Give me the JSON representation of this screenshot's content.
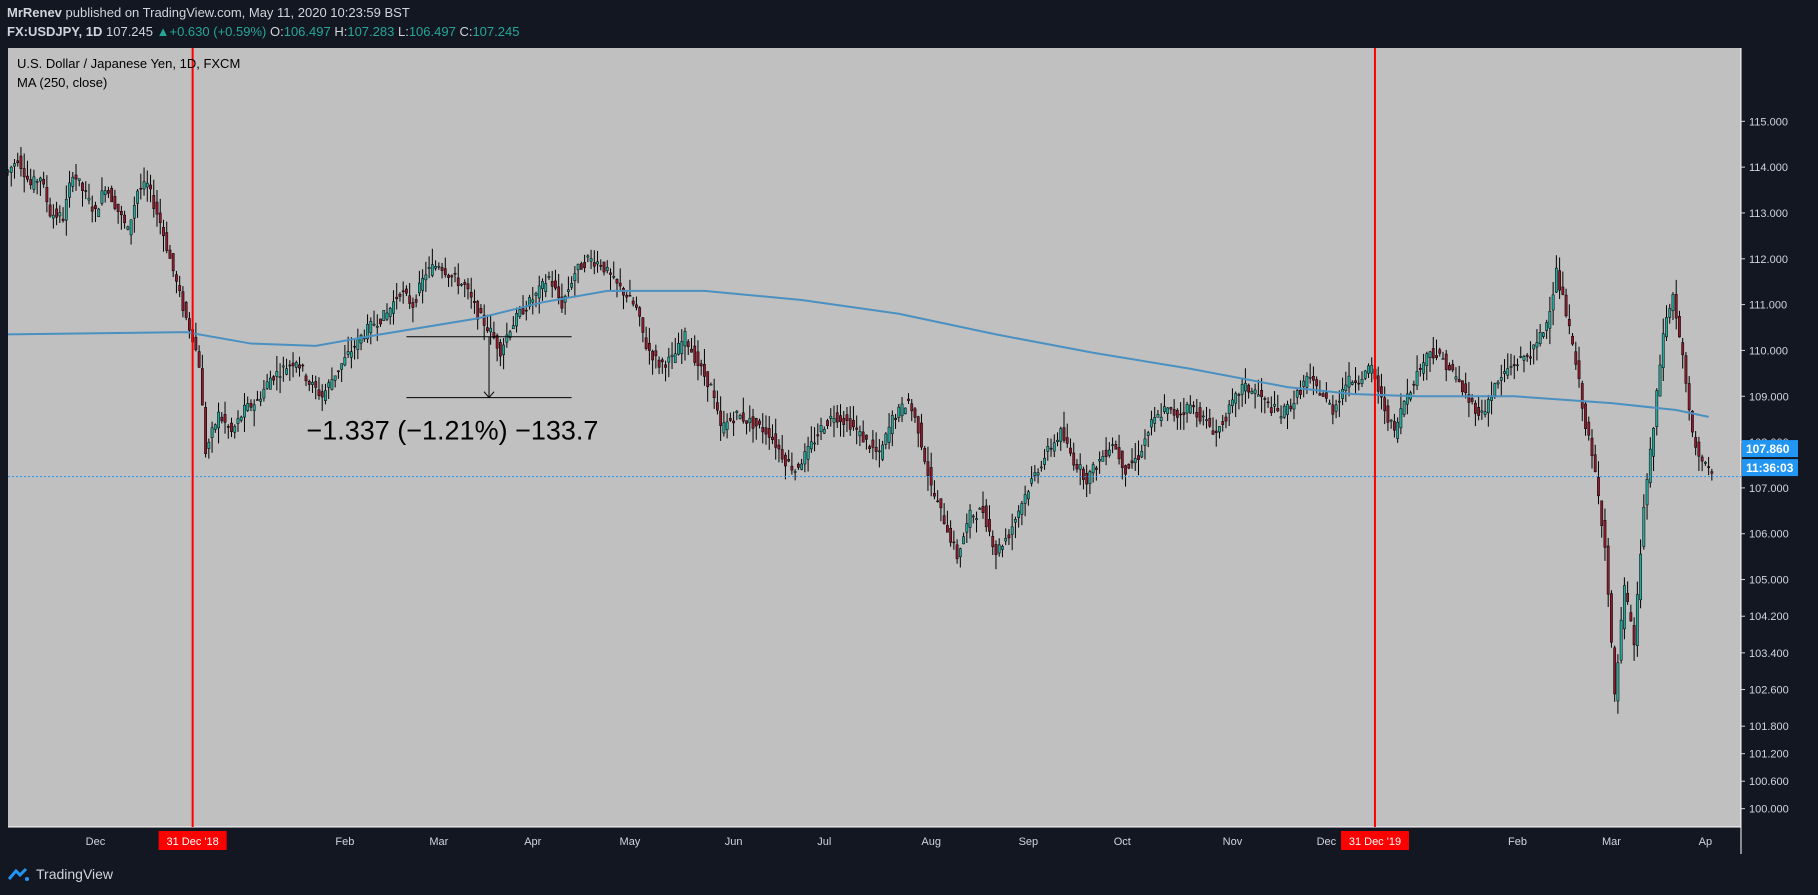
{
  "header": {
    "author": "MrRenev",
    "published": "published on TradingView.com, May 11, 2020 10:23:59 BST",
    "symbol": "FX:USDJPY, 1D",
    "last": "107.245",
    "change": "+0.630 (+0.59%)",
    "open_label": "O:",
    "open": "106.497",
    "high_label": "H:",
    "high": "107.283",
    "low_label": "L:",
    "low": "106.497",
    "close_label": "C:",
    "close": "107.245"
  },
  "legend": {
    "title": "U.S. Dollar / Japanese Yen, 1D, FXCM",
    "ma": "MA (250, close)"
  },
  "footer": {
    "brand": "TradingView"
  },
  "colors": {
    "background": "#131722",
    "plot": "#c0c0c0",
    "up": "#26a69a",
    "down": "#8b1a2b",
    "ma": "#4a90c0",
    "marker": "#ff0000",
    "accent": "#2196f3"
  },
  "chart_data": {
    "type": "candlestick",
    "title": "U.S. Dollar / Japanese Yen, 1D, FXCM",
    "y_ticks": [
      115.0,
      114.0,
      113.0,
      112.0,
      111.0,
      110.0,
      109.0,
      108.0,
      107.0,
      106.0,
      105.0,
      104.2,
      103.4,
      102.6,
      101.8,
      101.2,
      100.6,
      100.0
    ],
    "y_tick_labels": [
      "115.000",
      "114.000",
      "113.000",
      "112.000",
      "111.000",
      "110.000",
      "109.000",
      "108.000",
      "107.000",
      "106.000",
      "105.000",
      "104.200",
      "103.400",
      "102.600",
      "101.800",
      "101.200",
      "100.600",
      "100.000"
    ],
    "x_labels": [
      "Dec",
      "Feb",
      "Mar",
      "Apr",
      "May",
      "Jun",
      "Jul",
      "Aug",
      "Sep",
      "Oct",
      "Nov",
      "Dec",
      "Feb",
      "Mar",
      "Ap"
    ],
    "x_label_days": [
      12,
      89,
      118,
      147,
      177,
      209,
      237,
      270,
      300,
      329,
      363,
      392,
      451,
      480,
      509
    ],
    "ylim": [
      99.6,
      116.6
    ],
    "xlim": [
      -15,
      520
    ],
    "markers": [
      {
        "label": "31 Dec '18",
        "day": 42
      },
      {
        "label": "31 Dec '19",
        "day": 407
      }
    ],
    "ma_label": "MA (250, close)",
    "ma_path": [
      [
        -15,
        110.35
      ],
      [
        40,
        110.4
      ],
      [
        60,
        110.15
      ],
      [
        80,
        110.1
      ],
      [
        100,
        110.35
      ],
      [
        130,
        110.7
      ],
      [
        150,
        111.05
      ],
      [
        170,
        111.3
      ],
      [
        200,
        111.3
      ],
      [
        230,
        111.1
      ],
      [
        260,
        110.8
      ],
      [
        290,
        110.35
      ],
      [
        320,
        109.95
      ],
      [
        350,
        109.6
      ],
      [
        380,
        109.2
      ],
      [
        400,
        109.05
      ],
      [
        420,
        109.0
      ],
      [
        450,
        109.0
      ],
      [
        480,
        108.85
      ],
      [
        500,
        108.7
      ],
      [
        510,
        108.55
      ]
    ],
    "price_path": [
      [
        -15,
        113.9
      ],
      [
        -12,
        114.2
      ],
      [
        -8,
        113.6
      ],
      [
        -5,
        113.8
      ],
      [
        -2,
        113.0
      ],
      [
        2,
        112.9
      ],
      [
        5,
        113.9
      ],
      [
        8,
        113.5
      ],
      [
        12,
        113.0
      ],
      [
        15,
        113.6
      ],
      [
        18,
        113.2
      ],
      [
        22,
        112.6
      ],
      [
        25,
        113.5
      ],
      [
        28,
        113.6
      ],
      [
        32,
        112.8
      ],
      [
        35,
        112.0
      ],
      [
        38,
        111.2
      ],
      [
        40,
        110.7
      ],
      [
        42,
        110.3
      ],
      [
        44,
        109.7
      ],
      [
        46,
        107.8
      ],
      [
        50,
        108.6
      ],
      [
        54,
        108.2
      ],
      [
        58,
        108.7
      ],
      [
        62,
        108.9
      ],
      [
        66,
        109.4
      ],
      [
        70,
        109.6
      ],
      [
        74,
        109.8
      ],
      [
        78,
        109.3
      ],
      [
        82,
        109.0
      ],
      [
        86,
        109.5
      ],
      [
        90,
        109.9
      ],
      [
        94,
        110.3
      ],
      [
        98,
        110.6
      ],
      [
        102,
        110.8
      ],
      [
        106,
        111.3
      ],
      [
        110,
        111.0
      ],
      [
        114,
        111.7
      ],
      [
        118,
        111.9
      ],
      [
        122,
        111.6
      ],
      [
        126,
        111.4
      ],
      [
        130,
        110.8
      ],
      [
        134,
        110.4
      ],
      [
        137,
        110.0
      ],
      [
        140,
        110.5
      ],
      [
        144,
        110.9
      ],
      [
        148,
        111.2
      ],
      [
        152,
        111.6
      ],
      [
        156,
        111.0
      ],
      [
        160,
        111.7
      ],
      [
        164,
        112.0
      ],
      [
        168,
        111.9
      ],
      [
        172,
        111.5
      ],
      [
        176,
        111.2
      ],
      [
        179,
        110.9
      ],
      [
        182,
        110.1
      ],
      [
        186,
        109.7
      ],
      [
        190,
        109.8
      ],
      [
        194,
        110.3
      ],
      [
        198,
        109.7
      ],
      [
        202,
        109.2
      ],
      [
        205,
        108.3
      ],
      [
        210,
        108.6
      ],
      [
        215,
        108.4
      ],
      [
        220,
        108.2
      ],
      [
        225,
        107.6
      ],
      [
        228,
        107.4
      ],
      [
        232,
        107.8
      ],
      [
        236,
        108.3
      ],
      [
        240,
        108.6
      ],
      [
        245,
        108.4
      ],
      [
        250,
        108.0
      ],
      [
        254,
        107.7
      ],
      [
        258,
        108.5
      ],
      [
        263,
        108.9
      ],
      [
        266,
        108.3
      ],
      [
        270,
        107.0
      ],
      [
        274,
        106.3
      ],
      [
        278,
        105.5
      ],
      [
        282,
        106.4
      ],
      [
        286,
        106.5
      ],
      [
        290,
        105.6
      ],
      [
        294,
        106.0
      ],
      [
        298,
        106.7
      ],
      [
        302,
        107.3
      ],
      [
        306,
        107.8
      ],
      [
        310,
        108.2
      ],
      [
        314,
        107.6
      ],
      [
        318,
        107.2
      ],
      [
        322,
        107.6
      ],
      [
        326,
        108.0
      ],
      [
        330,
        107.4
      ],
      [
        334,
        107.7
      ],
      [
        338,
        108.4
      ],
      [
        342,
        108.7
      ],
      [
        346,
        108.6
      ],
      [
        350,
        108.8
      ],
      [
        354,
        108.5
      ],
      [
        358,
        108.2
      ],
      [
        362,
        108.7
      ],
      [
        366,
        109.2
      ],
      [
        370,
        109.1
      ],
      [
        374,
        108.8
      ],
      [
        378,
        108.6
      ],
      [
        382,
        108.9
      ],
      [
        386,
        109.4
      ],
      [
        390,
        109.1
      ],
      [
        394,
        108.7
      ],
      [
        398,
        109.3
      ],
      [
        402,
        109.4
      ],
      [
        406,
        109.6
      ],
      [
        409,
        108.9
      ],
      [
        413,
        108.2
      ],
      [
        416,
        108.9
      ],
      [
        420,
        109.5
      ],
      [
        424,
        110.0
      ],
      [
        428,
        109.8
      ],
      [
        432,
        109.4
      ],
      [
        436,
        108.9
      ],
      [
        440,
        108.6
      ],
      [
        444,
        109.2
      ],
      [
        448,
        109.6
      ],
      [
        452,
        109.8
      ],
      [
        456,
        110.0
      ],
      [
        460,
        110.6
      ],
      [
        463,
        111.7
      ],
      [
        466,
        110.8
      ],
      [
        469,
        109.7
      ],
      [
        472,
        108.4
      ],
      [
        475,
        107.3
      ],
      [
        478,
        105.8
      ],
      [
        481,
        102.4
      ],
      [
        484,
        104.8
      ],
      [
        487,
        103.6
      ],
      [
        490,
        106.6
      ],
      [
        493,
        108.3
      ],
      [
        496,
        110.4
      ],
      [
        499,
        111.2
      ],
      [
        502,
        109.8
      ],
      [
        505,
        108.1
      ],
      [
        508,
        107.6
      ],
      [
        511,
        107.2
      ]
    ],
    "annotation": {
      "text": "−1.337 (−1.21%) −133.7",
      "day_start": 108,
      "day_end": 159,
      "price_from": 110.3,
      "price_to": 108.97
    },
    "current_price": 107.245,
    "price_label": "107.860",
    "time_label": "11:36:03"
  }
}
